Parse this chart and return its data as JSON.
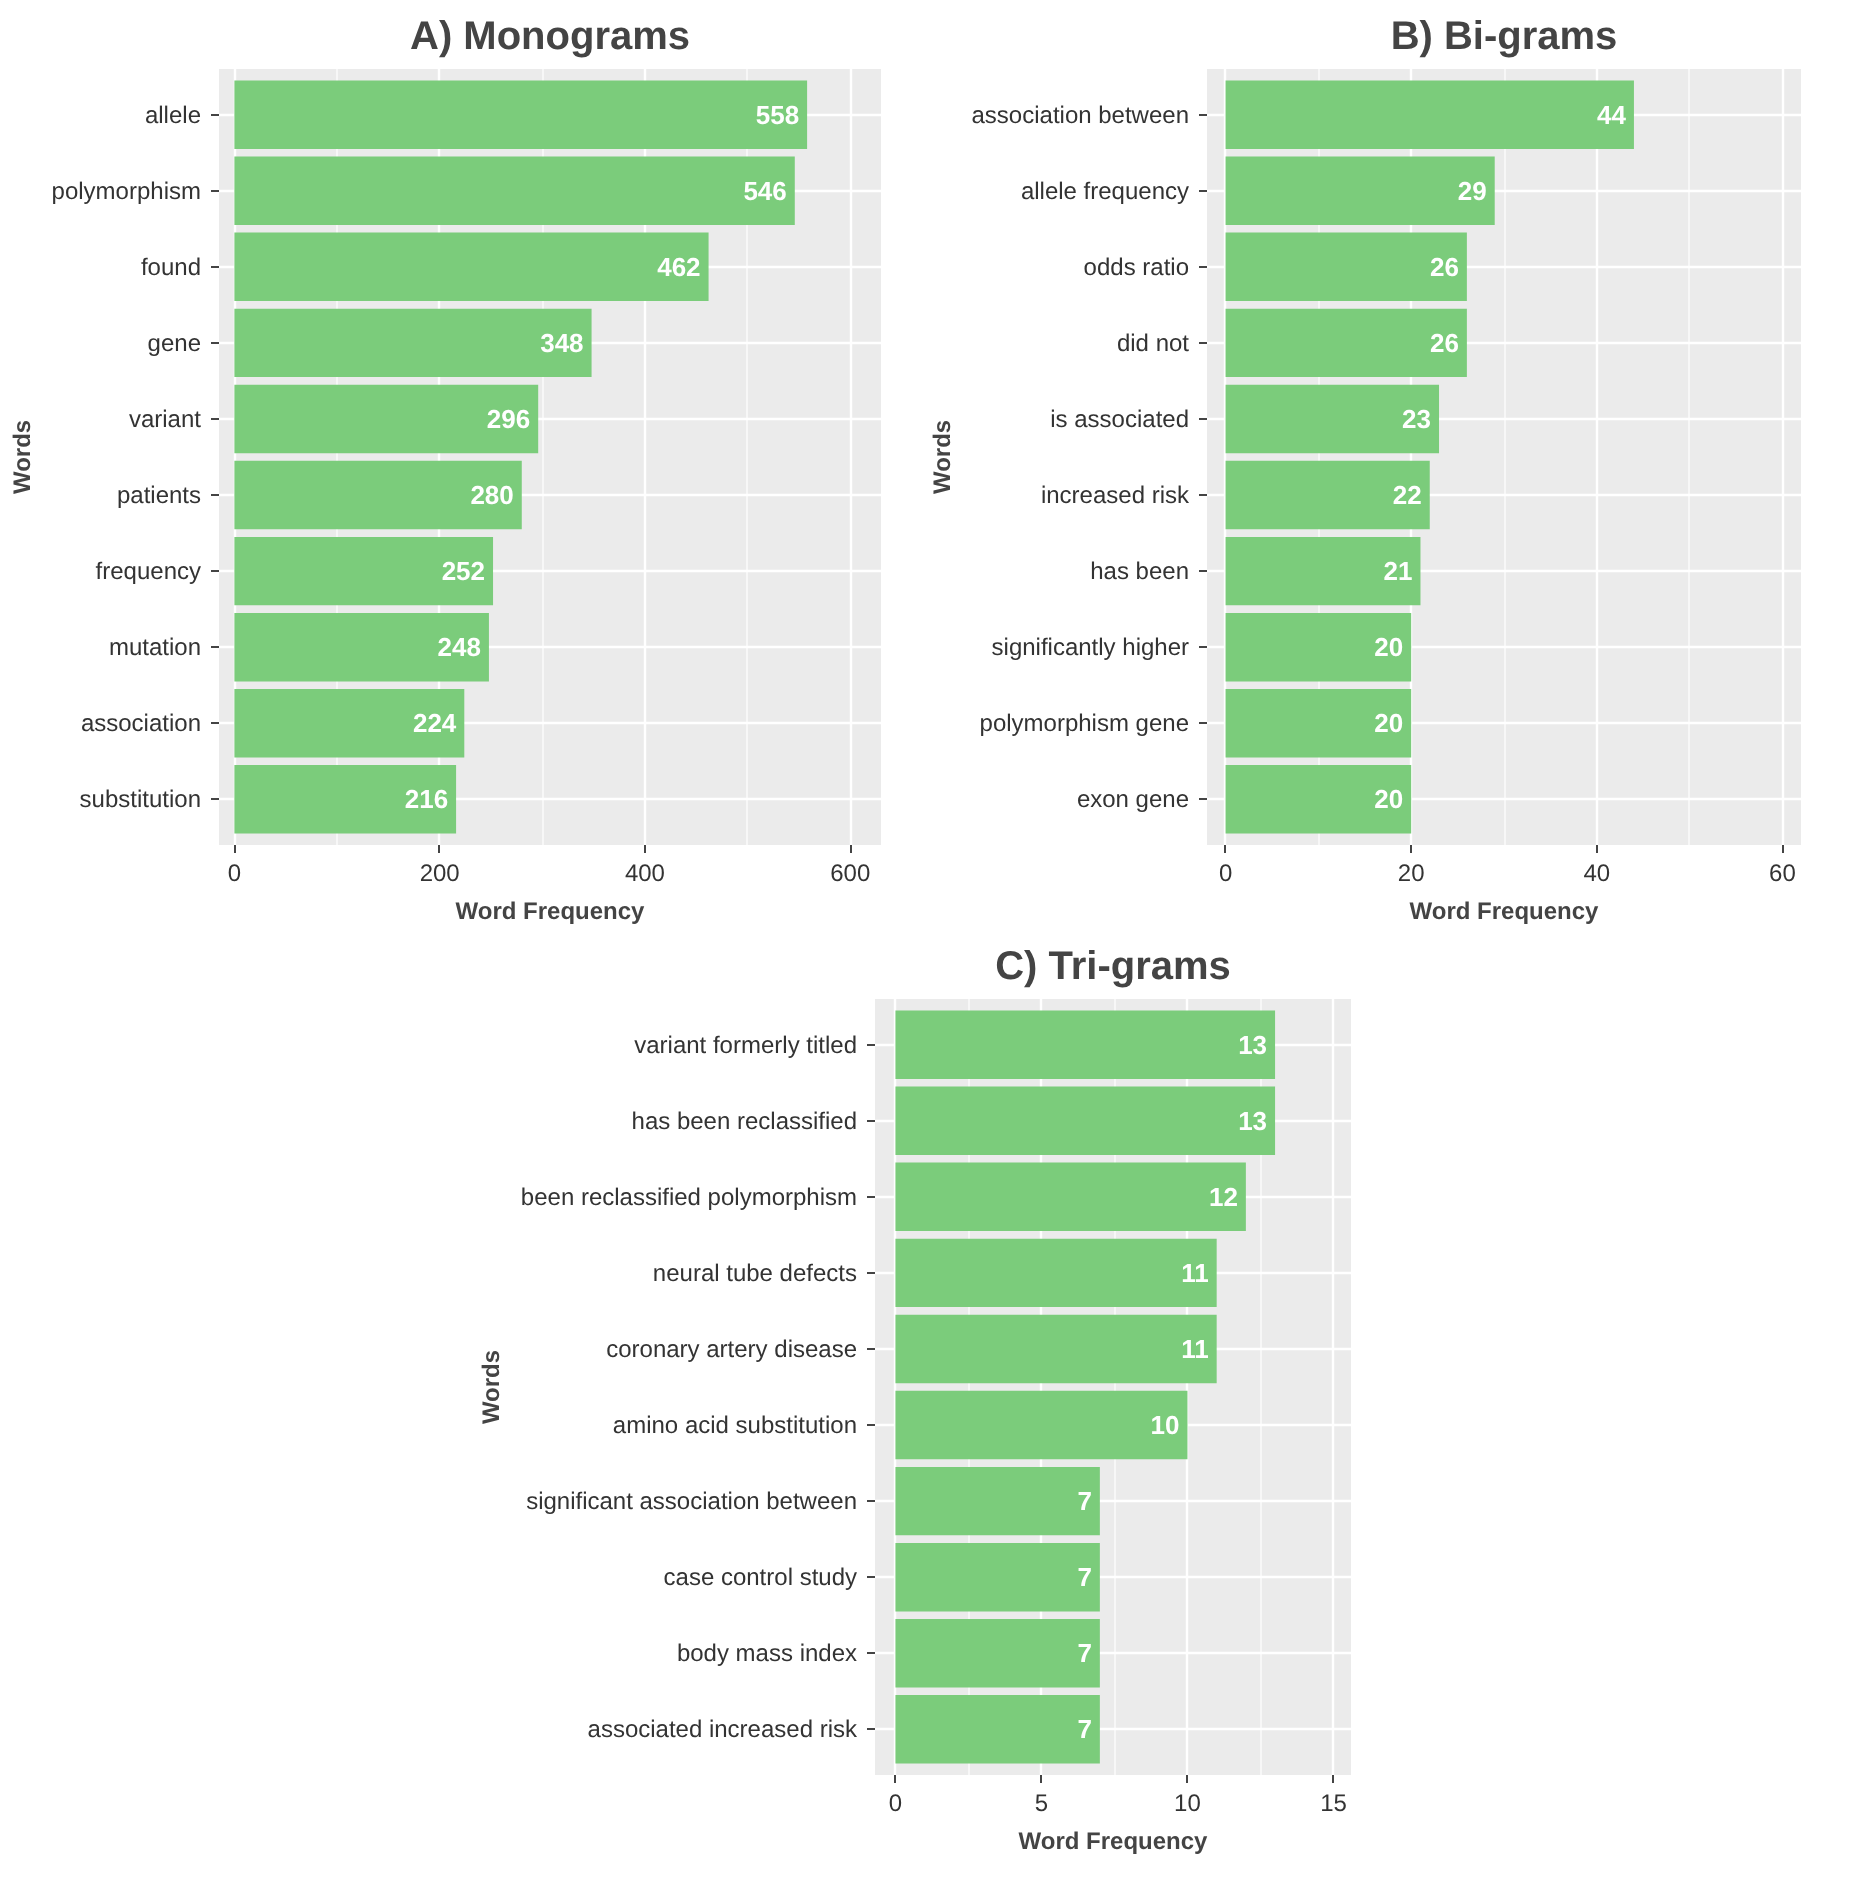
{
  "chart_data": [
    {
      "type": "bar",
      "orientation": "horizontal",
      "title": "A) Monograms",
      "xlabel": "Word Frequency",
      "ylabel": "Words",
      "categories": [
        "allele",
        "polymorphism",
        "found",
        "gene",
        "variant",
        "patients",
        "frequency",
        "mutation",
        "association",
        "substitution"
      ],
      "values": [
        558,
        546,
        462,
        348,
        296,
        280,
        252,
        248,
        224,
        216
      ],
      "color": "#7bcc7b",
      "xlim": [
        -15,
        630
      ],
      "xticks": [
        0,
        200,
        400,
        600
      ],
      "grid": true,
      "data_labels": true
    },
    {
      "type": "bar",
      "orientation": "horizontal",
      "title": "B) Bi-grams",
      "xlabel": "Word Frequency",
      "ylabel": "Words",
      "categories": [
        "association between",
        "allele frequency",
        "odds ratio",
        "did not",
        "is associated",
        "increased risk",
        "has been",
        "significantly higher",
        "polymorphism gene",
        "exon gene"
      ],
      "values": [
        44,
        29,
        26,
        26,
        23,
        22,
        21,
        20,
        20,
        20
      ],
      "color": "#7bcc7b",
      "xlim": [
        -2,
        62
      ],
      "xticks": [
        0,
        20,
        40,
        60
      ],
      "grid": true,
      "data_labels": true
    },
    {
      "type": "bar",
      "orientation": "horizontal",
      "title": "C) Tri-grams",
      "xlabel": "Word Frequency",
      "ylabel": "Words",
      "categories": [
        "variant formerly titled",
        "has been reclassified",
        "been reclassified polymorphism",
        "neural tube defects",
        "coronary artery disease",
        "amino acid substitution",
        "significant association between",
        "case control study",
        "body mass index",
        "associated increased risk"
      ],
      "values": [
        13,
        13,
        12,
        11,
        11,
        10,
        7,
        7,
        7,
        7
      ],
      "color": "#7bcc7b",
      "xlim": [
        -0.7,
        15.6
      ],
      "xticks": [
        0,
        5,
        10,
        15
      ],
      "grid": true,
      "data_labels": true
    }
  ]
}
